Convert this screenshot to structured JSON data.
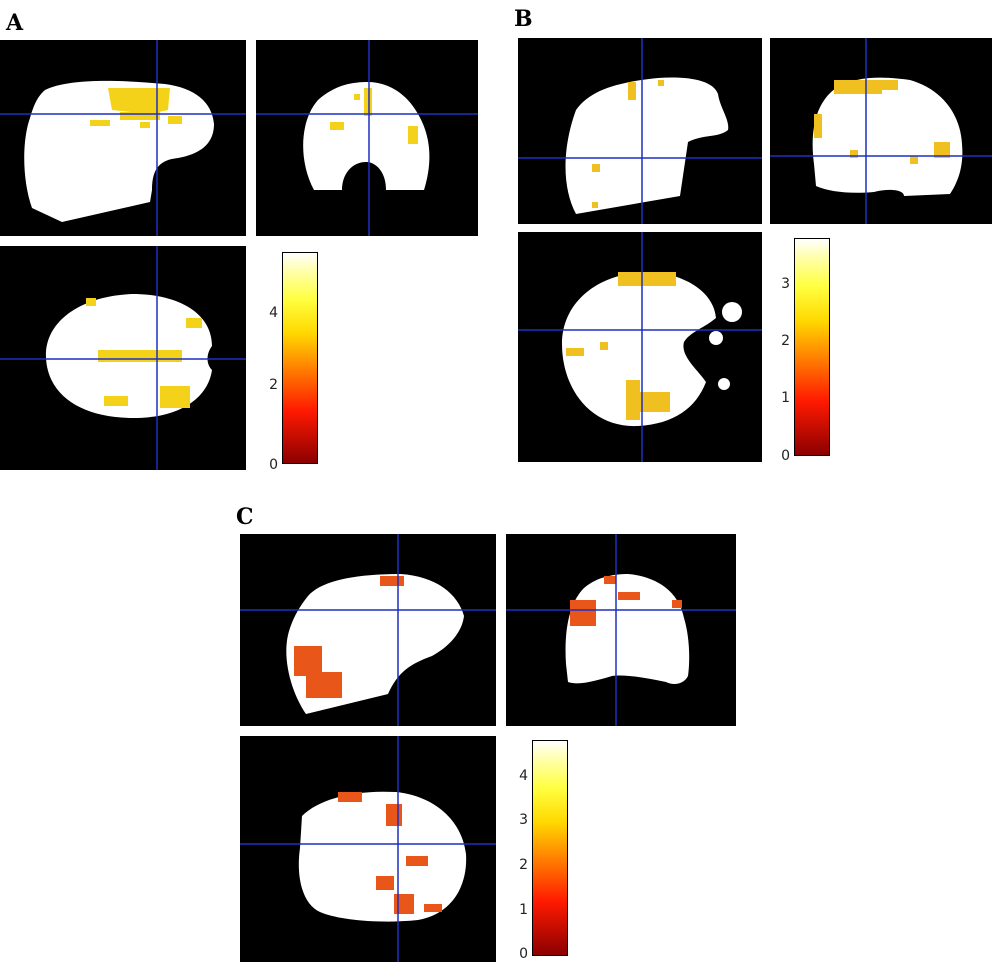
{
  "panels": [
    {
      "label": "A",
      "colorbar_ticks": [
        "4",
        "2",
        "0"
      ]
    },
    {
      "label": "B",
      "colorbar_ticks": [
        "3",
        "2",
        "1",
        "0"
      ]
    },
    {
      "label": "C",
      "colorbar_ticks": [
        "4",
        "3",
        "2",
        "1",
        "0"
      ]
    }
  ],
  "colors": {
    "background": "#000000",
    "brain": "#ffffff",
    "crosshair": "#1f2fbf",
    "activation_a": "#f5d21a",
    "activation_b": "#f0c020",
    "activation_c": "#e8561a"
  }
}
